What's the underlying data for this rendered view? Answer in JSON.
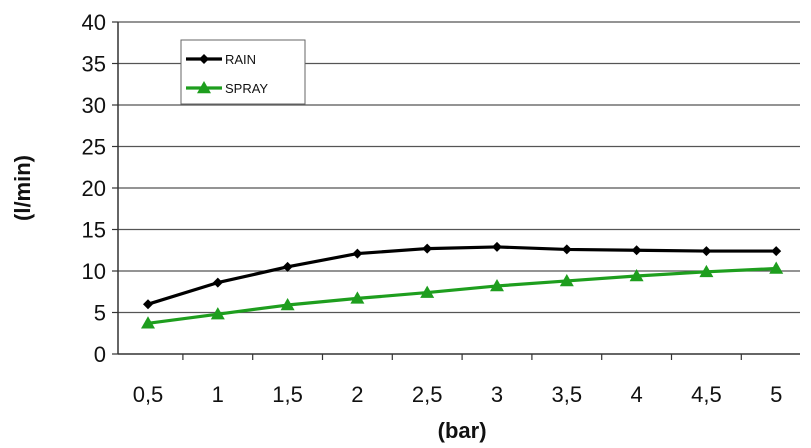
{
  "chart_data": {
    "type": "line",
    "title": "",
    "xlabel": "(bar)",
    "ylabel": "(l/min)",
    "categories": [
      "0,5",
      "1",
      "1,5",
      "2",
      "2,5",
      "3",
      "3,5",
      "4",
      "4,5",
      "5"
    ],
    "ylim": [
      0,
      40
    ],
    "yticks": [
      0,
      5,
      10,
      15,
      20,
      25,
      30,
      35,
      40
    ],
    "grid": true,
    "legend_position": "top-left",
    "series": [
      {
        "name": "RAIN",
        "color": "#000000",
        "marker": "diamond",
        "values": [
          6.0,
          8.6,
          10.5,
          12.1,
          12.7,
          12.9,
          12.6,
          12.5,
          12.4,
          12.4
        ]
      },
      {
        "name": "SPRAY",
        "color": "#1e9e1e",
        "marker": "triangle",
        "values": [
          3.7,
          4.8,
          5.9,
          6.7,
          7.4,
          8.2,
          8.8,
          9.4,
          9.9,
          10.3
        ]
      }
    ]
  }
}
